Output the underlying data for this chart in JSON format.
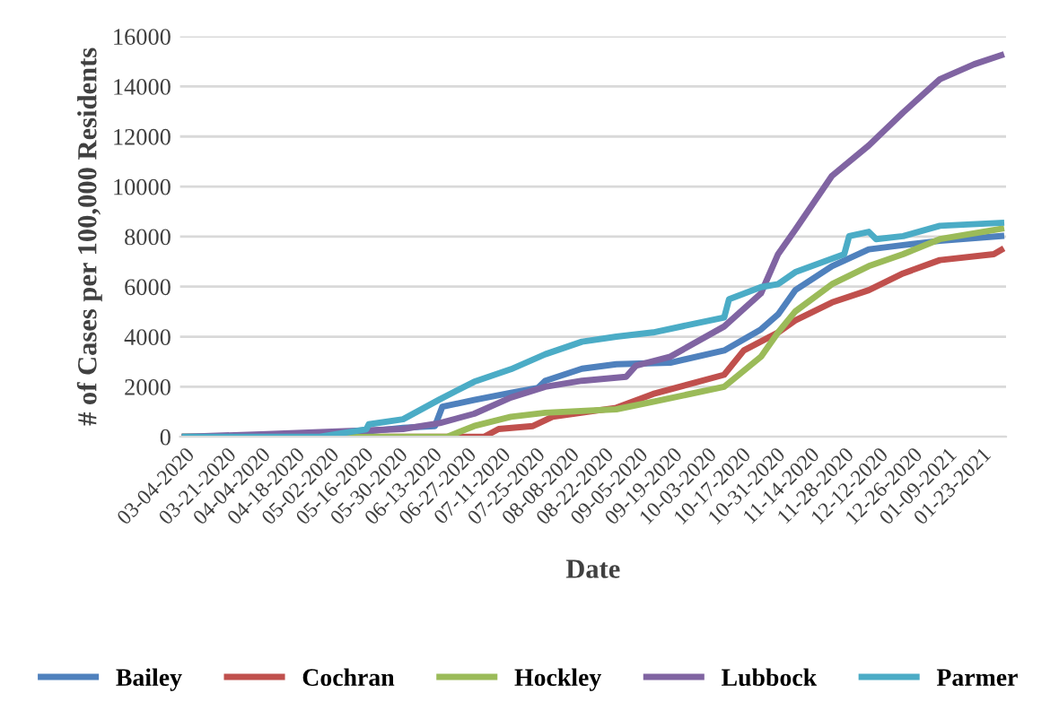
{
  "chart_data": {
    "type": "line",
    "xlabel": "Date",
    "ylabel": "# of Cases per 100,000 Residents",
    "xlim": [
      "2020-03-02",
      "2021-02-02"
    ],
    "ylim": [
      0,
      16000
    ],
    "yticks": [
      0,
      2000,
      4000,
      6000,
      8000,
      10000,
      12000,
      14000,
      16000
    ],
    "xticks": [
      {
        "value": "2020-03-04",
        "label": "03-04-2020"
      },
      {
        "value": "2020-03-21",
        "label": "03-21-2020"
      },
      {
        "value": "2020-04-04",
        "label": "04-04-2020"
      },
      {
        "value": "2020-04-18",
        "label": "04-18-2020"
      },
      {
        "value": "2020-05-02",
        "label": "05-02-2020"
      },
      {
        "value": "2020-05-16",
        "label": "05-16-2020"
      },
      {
        "value": "2020-05-30",
        "label": "05-30-2020"
      },
      {
        "value": "2020-06-13",
        "label": "06-13-2020"
      },
      {
        "value": "2020-06-27",
        "label": "06-27-2020"
      },
      {
        "value": "2020-07-11",
        "label": "07-11-2020"
      },
      {
        "value": "2020-07-25",
        "label": "07-25-2020"
      },
      {
        "value": "2020-08-08",
        "label": "08-08-2020"
      },
      {
        "value": "2020-08-22",
        "label": "08-22-2020"
      },
      {
        "value": "2020-09-05",
        "label": "09-05-2020"
      },
      {
        "value": "2020-09-19",
        "label": "09-19-2020"
      },
      {
        "value": "2020-10-03",
        "label": "10-03-2020"
      },
      {
        "value": "2020-10-17",
        "label": "10-17-2020"
      },
      {
        "value": "2020-10-31",
        "label": "10-31-2020"
      },
      {
        "value": "2020-11-14",
        "label": "11-14-2020"
      },
      {
        "value": "2020-11-28",
        "label": "11-28-2020"
      },
      {
        "value": "2020-12-12",
        "label": "12-12-2020"
      },
      {
        "value": "2020-12-26",
        "label": "12-26-2020"
      },
      {
        "value": "2021-01-09",
        "label": "01-09-2021"
      },
      {
        "value": "2021-01-23",
        "label": "01-23-2021"
      }
    ],
    "grid": "y",
    "legend": "bottom",
    "marker": "none",
    "line_style": "solid",
    "series": [
      {
        "name": "Bailey",
        "color": "#4f81bd",
        "x": [
          "2020-03-04",
          "2020-04-11",
          "2020-05-06",
          "2020-06-01",
          "2020-06-14",
          "2020-06-17",
          "2020-06-30",
          "2020-07-15",
          "2020-07-26",
          "2020-07-29",
          "2020-08-13",
          "2020-08-27",
          "2020-09-18",
          "2020-10-10",
          "2020-10-25",
          "2020-11-01",
          "2020-11-08",
          "2020-11-23",
          "2020-12-08",
          "2020-12-22",
          "2021-01-06",
          "2021-01-31"
        ],
        "values": [
          0,
          0,
          100,
          360,
          430,
          1200,
          1470,
          1760,
          1950,
          2240,
          2720,
          2900,
          2960,
          3450,
          4290,
          4890,
          5860,
          6820,
          7490,
          7660,
          7830,
          8020
        ]
      },
      {
        "name": "Cochran",
        "color": "#c0504d",
        "x": [
          "2020-03-04",
          "2020-07-04",
          "2020-07-10",
          "2020-07-24",
          "2020-08-01",
          "2020-08-27",
          "2020-09-11",
          "2020-10-10",
          "2020-10-18",
          "2020-11-01",
          "2020-11-08",
          "2020-11-23",
          "2020-12-08",
          "2020-12-22",
          "2021-01-06",
          "2021-01-28",
          "2021-01-31"
        ],
        "values": [
          0,
          0,
          310,
          430,
          800,
          1160,
          1710,
          2480,
          3450,
          4170,
          4650,
          5370,
          5860,
          6530,
          7060,
          7300,
          7470
        ]
      },
      {
        "name": "Hockley",
        "color": "#9bbb59",
        "x": [
          "2020-03-04",
          "2020-06-19",
          "2020-06-30",
          "2020-07-15",
          "2020-07-29",
          "2020-08-27",
          "2020-09-11",
          "2020-10-10",
          "2020-10-25",
          "2020-11-01",
          "2020-11-08",
          "2020-11-23",
          "2020-12-08",
          "2020-12-22",
          "2021-01-06",
          "2021-01-31"
        ],
        "values": [
          0,
          0,
          430,
          800,
          960,
          1100,
          1400,
          2000,
          3200,
          4170,
          5010,
          6100,
          6820,
          7300,
          7900,
          8310
        ]
      },
      {
        "name": "Lubbock",
        "color": "#8064a2",
        "x": [
          "2020-03-04",
          "2020-04-04",
          "2020-06-01",
          "2020-06-16",
          "2020-06-30",
          "2020-07-15",
          "2020-07-29",
          "2020-08-13",
          "2020-08-27",
          "2020-08-31",
          "2020-09-04",
          "2020-09-18",
          "2020-10-10",
          "2020-10-25",
          "2020-11-01",
          "2020-11-08",
          "2020-11-23",
          "2020-12-08",
          "2020-12-22",
          "2021-01-06",
          "2021-01-20",
          "2021-01-31"
        ],
        "values": [
          0,
          100,
          310,
          550,
          920,
          1570,
          2000,
          2240,
          2360,
          2400,
          2840,
          3200,
          4410,
          5730,
          7300,
          8270,
          10430,
          11640,
          12960,
          14290,
          14890,
          15250
        ]
      },
      {
        "name": "Parmer",
        "color": "#4bacc6",
        "x": [
          "2020-03-04",
          "2020-04-28",
          "2020-05-17",
          "2020-05-18",
          "2020-06-01",
          "2020-06-16",
          "2020-06-30",
          "2020-07-15",
          "2020-07-29",
          "2020-08-13",
          "2020-08-27",
          "2020-09-11",
          "2020-10-10",
          "2020-10-12",
          "2020-10-25",
          "2020-11-01",
          "2020-11-08",
          "2020-11-28",
          "2020-11-30",
          "2020-12-08",
          "2020-12-11",
          "2020-12-22",
          "2021-01-06",
          "2021-01-31"
        ],
        "values": [
          0,
          0,
          300,
          500,
          700,
          1500,
          2200,
          2700,
          3300,
          3800,
          4000,
          4170,
          4770,
          5500,
          5980,
          6100,
          6580,
          7300,
          8020,
          8190,
          7900,
          8020,
          8430,
          8550
        ]
      }
    ]
  }
}
